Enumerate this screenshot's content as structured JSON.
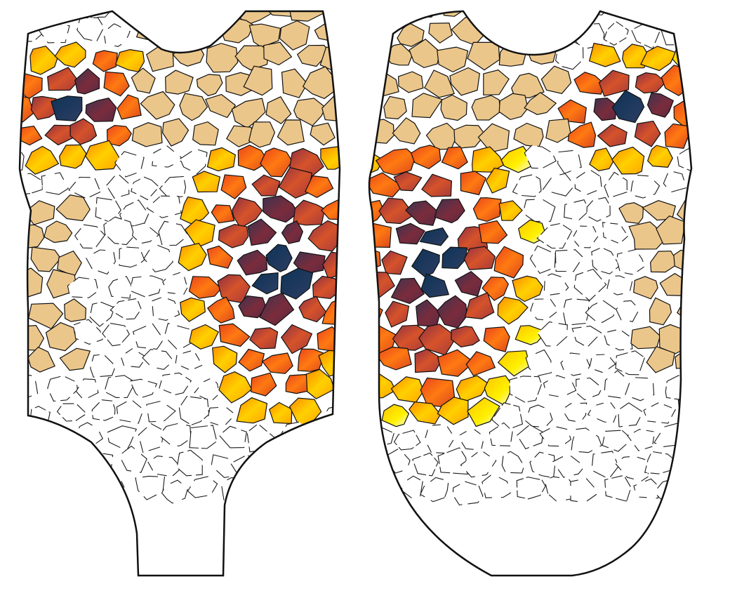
{
  "artwork": {
    "subject": "",
    "pattern_icon": "mosaic-cell-pattern-icon",
    "palette": {
      "background": "#ffffff",
      "outline": "#111111",
      "gap": "#ffffff",
      "sand": "#ebc68b",
      "navy": "#123a5c",
      "maroon": "#6b2a3e",
      "rust": "#c94f2c",
      "orange": "#f0581a",
      "gold": "#ffb10a",
      "yellow": "#ffe400",
      "pale": "#fff9b5"
    }
  }
}
